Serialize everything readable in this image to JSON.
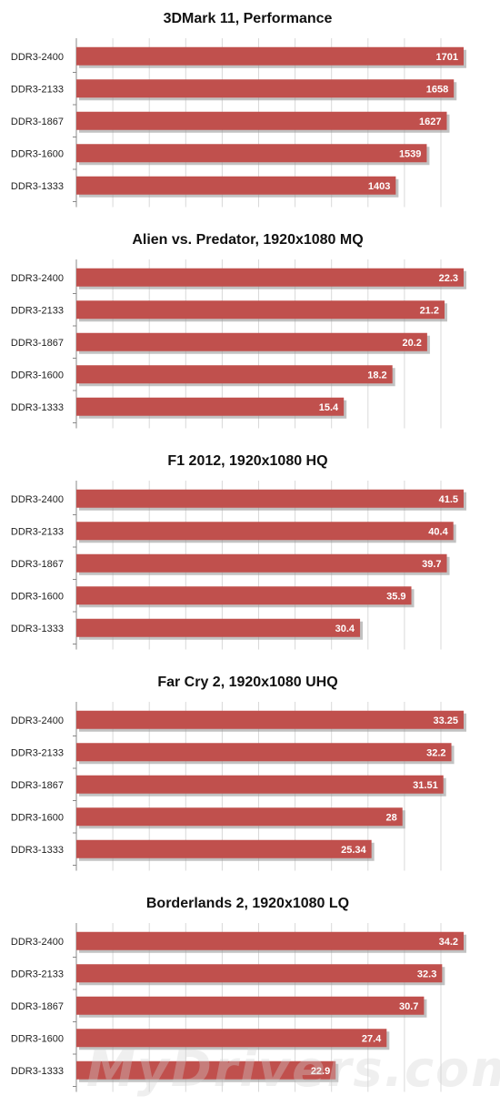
{
  "colors": {
    "bar": "#c0504d",
    "bar_shadow": "#9a9a9a",
    "grid": "#d9d9d9",
    "axis": "#888888",
    "value_text": "#ffffff",
    "label_text": "#222222"
  },
  "watermark": "MyDrivers.com",
  "chart_data": [
    {
      "type": "bar",
      "orientation": "horizontal",
      "title": "3DMark 11, Performance",
      "categories": [
        "DDR3-2400",
        "DDR3-2133",
        "DDR3-1867",
        "DDR3-1600",
        "DDR3-1333"
      ],
      "values": [
        1701,
        1658,
        1627,
        1539,
        1403
      ],
      "labels": [
        "1701",
        "1658",
        "1627",
        "1539",
        "1403"
      ],
      "xlim": [
        0,
        1800
      ],
      "grid": true
    },
    {
      "type": "bar",
      "orientation": "horizontal",
      "title": "Alien vs. Predator, 1920x1080 MQ",
      "categories": [
        "DDR3-2400",
        "DDR3-2133",
        "DDR3-1867",
        "DDR3-1600",
        "DDR3-1333"
      ],
      "values": [
        22.3,
        21.2,
        20.2,
        18.2,
        15.4
      ],
      "labels": [
        "22.3",
        "21.2",
        "20.2",
        "18.2",
        "15.4"
      ],
      "xlim": [
        0,
        25
      ],
      "grid": true
    },
    {
      "type": "bar",
      "orientation": "horizontal",
      "title": "F1 2012, 1920x1080 HQ",
      "categories": [
        "DDR3-2400",
        "DDR3-2133",
        "DDR3-1867",
        "DDR3-1600",
        "DDR3-1333"
      ],
      "values": [
        41.5,
        40.4,
        39.7,
        35.9,
        30.4
      ],
      "labels": [
        "41.5",
        "40.4",
        "39.7",
        "35.9",
        "30.4"
      ],
      "xlim": [
        0,
        45
      ],
      "grid": true
    },
    {
      "type": "bar",
      "orientation": "horizontal",
      "title": "Far Cry 2, 1920x1080 UHQ",
      "categories": [
        "DDR3-2400",
        "DDR3-2133",
        "DDR3-1867",
        "DDR3-1600",
        "DDR3-1333"
      ],
      "values": [
        33.25,
        32.2,
        31.51,
        28,
        25.34
      ],
      "labels": [
        "33.25",
        "32.2",
        "31.51",
        "28",
        "25.34"
      ],
      "xlim": [
        0,
        35
      ],
      "grid": true
    },
    {
      "type": "bar",
      "orientation": "horizontal",
      "title": "Borderlands 2, 1920x1080 LQ",
      "categories": [
        "DDR3-2400",
        "DDR3-2133",
        "DDR3-1867",
        "DDR3-1600",
        "DDR3-1333"
      ],
      "values": [
        34.2,
        32.3,
        30.7,
        27.4,
        22.9
      ],
      "labels": [
        "34.2",
        "32.3",
        "30.7",
        "27.4",
        "22.9"
      ],
      "xlim": [
        0,
        40
      ],
      "grid": true
    }
  ]
}
